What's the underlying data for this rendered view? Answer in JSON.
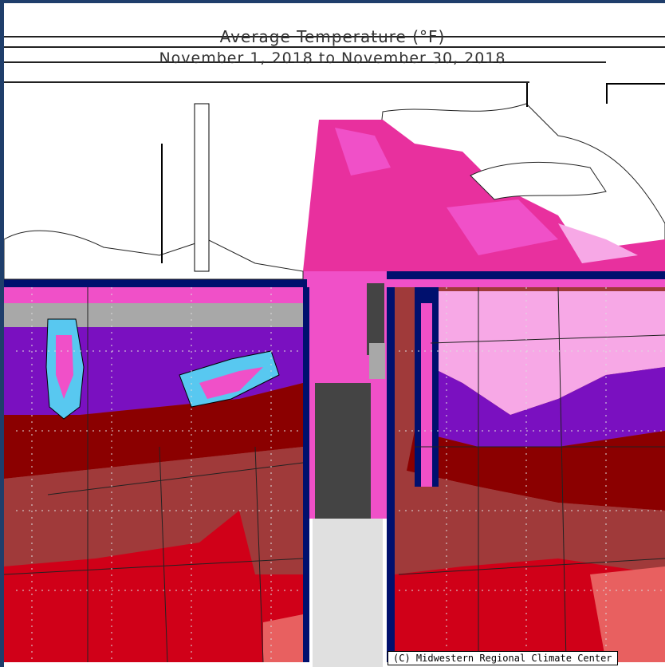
{
  "map": {
    "title": "Average Temperature (°F)",
    "subtitle": "November 1, 2018 to November 30, 2018",
    "credit": "(C) Midwestern Regional Climate Center"
  },
  "colors": {
    "frame": "#1f3e6b",
    "light_pink": "#f7a8e6",
    "pink": "#f050c8",
    "hot_pink": "#e8309e",
    "purple": "#7a10c0",
    "dark_red": "#8b0000",
    "brown_red": "#a03a3a",
    "red": "#d00018",
    "salmon": "#e86060",
    "light_blue": "#58c8f0",
    "navy": "#00106e",
    "gray": "#a8a8a8",
    "dark_gray": "#444444"
  }
}
